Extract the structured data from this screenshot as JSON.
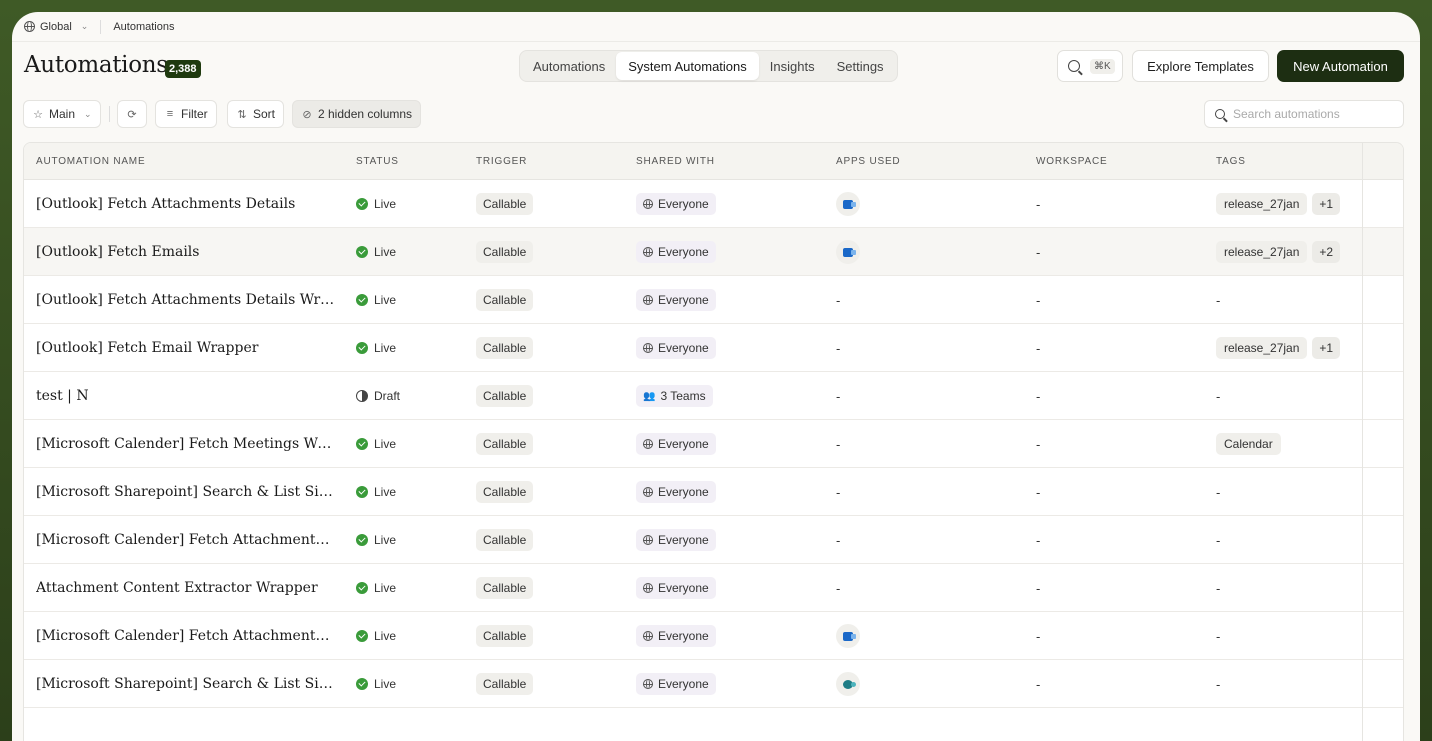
{
  "breadcrumb": {
    "workspace": "Global",
    "page": "Automations"
  },
  "header": {
    "title": "Automations",
    "count": "2,388",
    "tabs": [
      {
        "label": "Automations",
        "active": false
      },
      {
        "label": "System Automations",
        "active": true
      },
      {
        "label": "Insights",
        "active": false
      },
      {
        "label": "Settings",
        "active": false
      }
    ],
    "search_shortcut": "⌘K",
    "explore_label": "Explore Templates",
    "new_label": "New Automation"
  },
  "toolbar": {
    "view_label": "Main",
    "filter_label": "Filter",
    "sort_label": "Sort",
    "hidden_columns_label": "2 hidden columns",
    "search_placeholder": "Search automations"
  },
  "columns": [
    "AUTOMATION NAME",
    "STATUS",
    "TRIGGER",
    "SHARED WITH",
    "APPS USED",
    "WORKSPACE",
    "TAGS"
  ],
  "rows": [
    {
      "name": "[Outlook] Fetch Attachments Details",
      "status": "Live",
      "trigger": "Callable",
      "shared": "Everyone",
      "shared_type": "globe",
      "app": "outlook",
      "workspace": "-",
      "tags": [
        "release_27jan"
      ],
      "more": "+1"
    },
    {
      "name": "[Outlook] Fetch Emails",
      "status": "Live",
      "trigger": "Callable",
      "shared": "Everyone",
      "shared_type": "globe",
      "app": "outlook",
      "workspace": "-",
      "tags": [
        "release_27jan"
      ],
      "more": "+2"
    },
    {
      "name": "[Outlook] Fetch Attachments Details Wrapper",
      "status": "Live",
      "trigger": "Callable",
      "shared": "Everyone",
      "shared_type": "globe",
      "app": "",
      "workspace": "-",
      "tags": [],
      "more": ""
    },
    {
      "name": "[Outlook] Fetch Email Wrapper",
      "status": "Live",
      "trigger": "Callable",
      "shared": "Everyone",
      "shared_type": "globe",
      "app": "",
      "workspace": "-",
      "tags": [
        "release_27jan"
      ],
      "more": "+1"
    },
    {
      "name": "test | N",
      "status": "Draft",
      "trigger": "Callable",
      "shared": "3 Teams",
      "shared_type": "teams",
      "app": "",
      "workspace": "-",
      "tags": [],
      "more": ""
    },
    {
      "name": "[Microsoft Calender] Fetch Meetings Wrapper",
      "status": "Live",
      "trigger": "Callable",
      "shared": "Everyone",
      "shared_type": "globe",
      "app": "",
      "workspace": "-",
      "tags": [
        "Calendar"
      ],
      "more": ""
    },
    {
      "name": "[Microsoft Sharepoint] Search & List Sites Wrapper",
      "status": "Live",
      "trigger": "Callable",
      "shared": "Everyone",
      "shared_type": "globe",
      "app": "",
      "workspace": "-",
      "tags": [],
      "more": ""
    },
    {
      "name": "[Microsoft Calender] Fetch Attachments Details Wrapper",
      "status": "Live",
      "trigger": "Callable",
      "shared": "Everyone",
      "shared_type": "globe",
      "app": "",
      "workspace": "-",
      "tags": [],
      "more": ""
    },
    {
      "name": "Attachment Content Extractor Wrapper",
      "status": "Live",
      "trigger": "Callable",
      "shared": "Everyone",
      "shared_type": "globe",
      "app": "",
      "workspace": "-",
      "tags": [],
      "more": ""
    },
    {
      "name": "[Microsoft Calender] Fetch Attachments Details",
      "status": "Live",
      "trigger": "Callable",
      "shared": "Everyone",
      "shared_type": "globe",
      "app": "outlook",
      "workspace": "-",
      "tags": [],
      "more": ""
    },
    {
      "name": "[Microsoft Sharepoint] Search & List Sites",
      "status": "Live",
      "trigger": "Callable",
      "shared": "Everyone",
      "shared_type": "globe",
      "app": "sharepoint",
      "workspace": "-",
      "tags": [],
      "more": ""
    }
  ]
}
